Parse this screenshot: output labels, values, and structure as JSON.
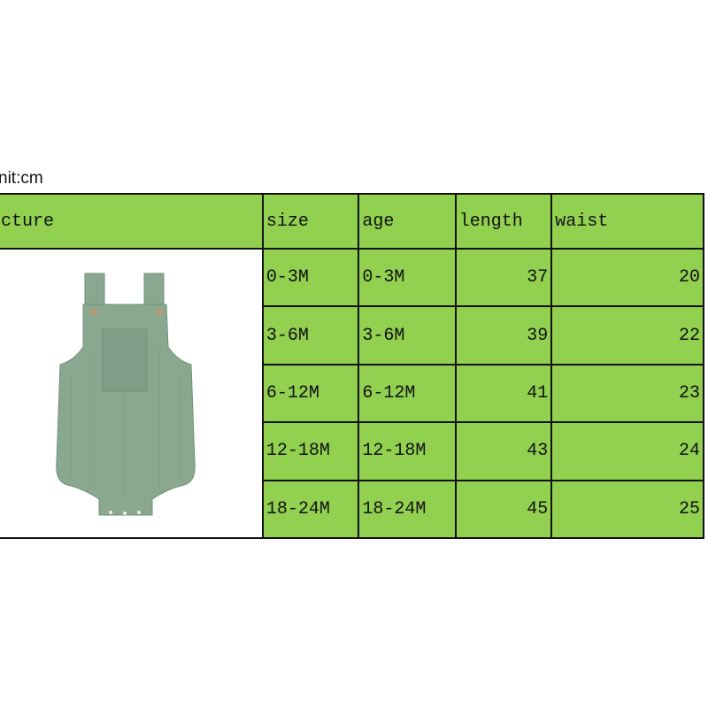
{
  "unit_label": "nit:cm",
  "headers": [
    "cture",
    "size",
    "age",
    "length",
    "waist"
  ],
  "rows": [
    {
      "size": "0-3M",
      "age": "0-3M",
      "length": "37",
      "waist": "20"
    },
    {
      "size": "3-6M",
      "age": "3-6M",
      "length": "39",
      "waist": "22"
    },
    {
      "size": "6-12M",
      "age": "6-12M",
      "length": "41",
      "waist": "23"
    },
    {
      "size": "12-18M",
      "age": "12-18M",
      "length": "43",
      "waist": "24"
    },
    {
      "size": "18-24M",
      "age": "18-24M",
      "length": "45",
      "waist": "25"
    }
  ],
  "colors": {
    "header_fill": "#92d050",
    "romper": "#8aa890"
  }
}
